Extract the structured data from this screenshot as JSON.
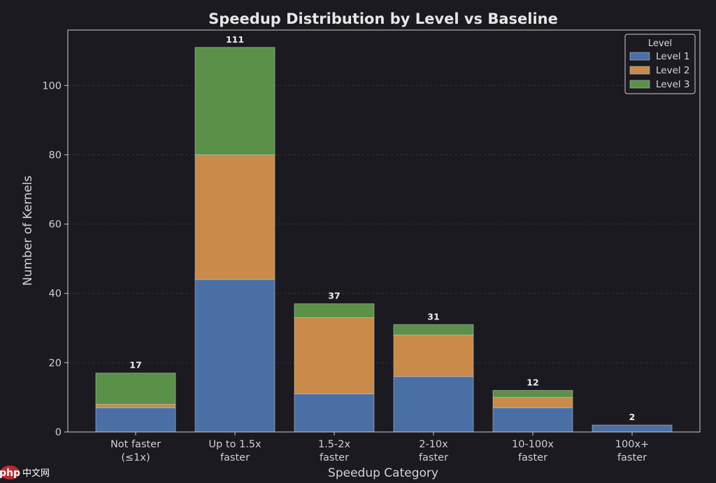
{
  "colors": {
    "background": "#1a1a20",
    "axes": "#cfcfcf",
    "grid": "#2f3340",
    "Level 1": "#4a6fa5",
    "Level 2": "#c98a4a",
    "Level 3": "#5a9048"
  },
  "chart_data": {
    "type": "bar",
    "stacked": true,
    "title": "Speedup Distribution by Level vs Baseline",
    "xlabel": "Speedup Category",
    "ylabel": "Number of Kernels",
    "ylim": [
      0,
      116
    ],
    "yticks": [
      0,
      20,
      40,
      60,
      80,
      100
    ],
    "grid": true,
    "categories": [
      [
        "Not faster",
        "(≤1x)"
      ],
      [
        "Up to 1.5x",
        "faster"
      ],
      [
        "1.5-2x",
        "faster"
      ],
      [
        "2-10x",
        "faster"
      ],
      [
        "10-100x",
        "faster"
      ],
      [
        "100x+",
        "faster"
      ]
    ],
    "series": [
      {
        "name": "Level 1",
        "values": [
          7,
          44,
          11,
          16,
          7,
          2
        ]
      },
      {
        "name": "Level 2",
        "values": [
          1,
          36,
          22,
          12,
          3,
          0
        ]
      },
      {
        "name": "Level 3",
        "values": [
          9,
          31,
          4,
          3,
          2,
          0
        ]
      }
    ],
    "totals": [
      17,
      111,
      37,
      31,
      12,
      2
    ],
    "legend": {
      "title": "Level",
      "placement": "top-right"
    }
  },
  "watermark": {
    "logo_text": "php",
    "site_text": "中文网"
  }
}
